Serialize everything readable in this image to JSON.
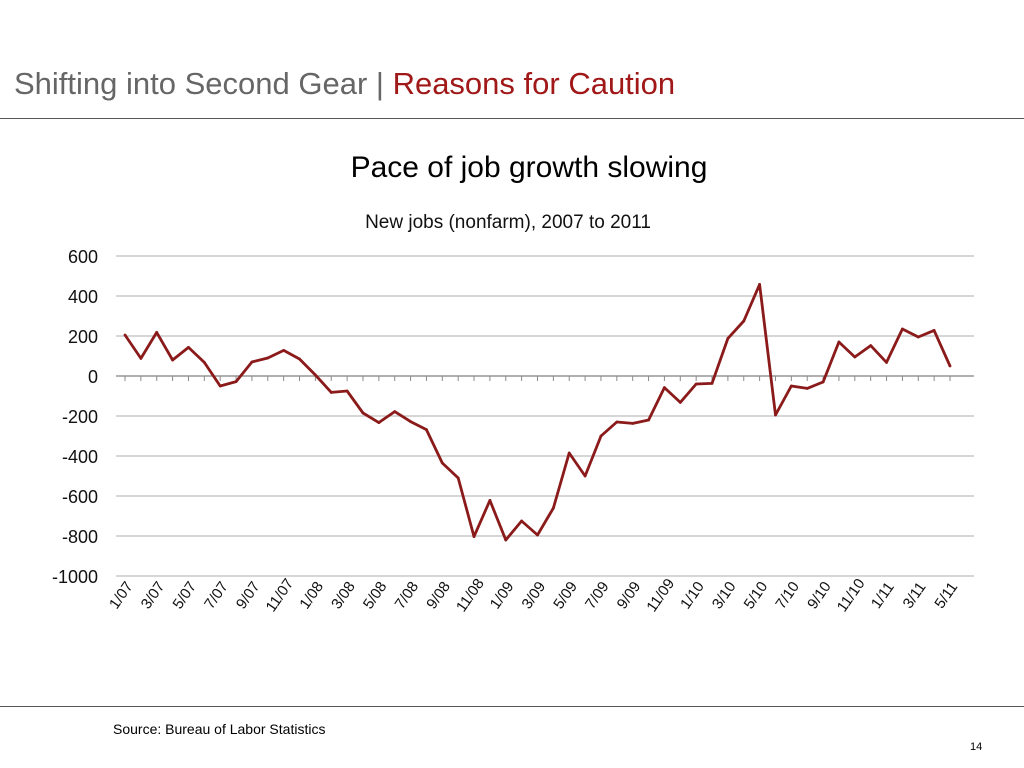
{
  "header": {
    "title_main": "Shifting into Second Gear | ",
    "title_accent": "Reasons for Caution"
  },
  "slide_subtitle": "Pace of job growth slowing",
  "chart_data": {
    "type": "line",
    "title": "New jobs (nonfarm), 2007 to 2011",
    "xlabel": "",
    "ylabel": "",
    "ylim": [
      -1000,
      600
    ],
    "yticks": [
      600,
      400,
      200,
      0,
      -200,
      -400,
      -600,
      -800,
      -1000
    ],
    "grid": true,
    "line_color": "#8b1a1a",
    "x_tick_labels": [
      "1/07",
      "3/07",
      "5/07",
      "7/07",
      "9/07",
      "11/07",
      "1/08",
      "3/08",
      "5/08",
      "7/08",
      "9/08",
      "11/08",
      "1/09",
      "3/09",
      "5/09",
      "7/09",
      "9/09",
      "11/09",
      "1/10",
      "3/10",
      "5/10",
      "7/10",
      "9/10",
      "11/10",
      "1/11",
      "3/11",
      "5/11"
    ],
    "x": [
      "1/07",
      "2/07",
      "3/07",
      "4/07",
      "5/07",
      "6/07",
      "7/07",
      "8/07",
      "9/07",
      "10/07",
      "11/07",
      "12/07",
      "1/08",
      "2/08",
      "3/08",
      "4/08",
      "5/08",
      "6/08",
      "7/08",
      "8/08",
      "9/08",
      "10/08",
      "11/08",
      "12/08",
      "1/09",
      "2/09",
      "3/09",
      "4/09",
      "5/09",
      "6/09",
      "7/09",
      "8/09",
      "9/09",
      "10/09",
      "11/09",
      "12/09",
      "1/10",
      "2/10",
      "3/10",
      "4/10",
      "5/10",
      "6/10",
      "7/10",
      "8/10",
      "9/10",
      "10/10",
      "11/10",
      "12/10",
      "1/11",
      "2/11",
      "3/11",
      "4/11",
      "5/11"
    ],
    "series": [
      {
        "values": [
          205,
          88,
          218,
          80,
          143,
          68,
          -50,
          -28,
          70,
          90,
          128,
          85,
          5,
          -82,
          -75,
          -185,
          -233,
          -178,
          -228,
          -268,
          -435,
          -510,
          -803,
          -622,
          -820,
          -725,
          -795,
          -660,
          -385,
          -500,
          -300,
          -230,
          -237,
          -220,
          -58,
          -132,
          -40,
          -37,
          188,
          275,
          458,
          -195,
          -50,
          -62,
          -30,
          170,
          95,
          152,
          68,
          235,
          195,
          228,
          50
        ]
      }
    ]
  },
  "footer": {
    "source": "Source: Bureau of Labor Statistics",
    "page_number": "14"
  }
}
